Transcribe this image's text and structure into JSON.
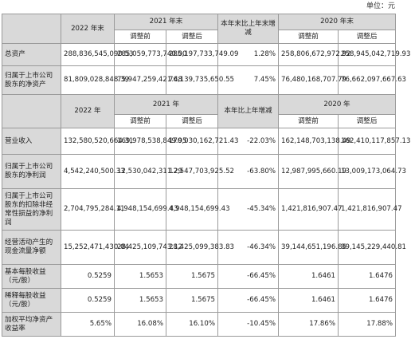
{
  "unit_label": "单位：元",
  "table1": {
    "header": {
      "col_year_2022": "2022 年末",
      "col_year_2021": "2021 年末",
      "col_change": "本年末比上年末增减",
      "col_year_2020": "2020 年末",
      "sub_before": "调整前",
      "sub_after": "调整后"
    },
    "rows": [
      {
        "label": "总资产",
        "v2022": "288,836,545,090.53",
        "v2021_before": "285,059,773,740.00",
        "v2021_after": "285,197,733,749.09",
        "change": "1.28%",
        "v2020_before": "258,806,672,972.92",
        "v2020_after": "258,945,042,719.93"
      },
      {
        "label": "归属于上市公司股东的净资产",
        "v2022": "81,809,028,848.39",
        "v2021_before": "75,947,259,421.48",
        "v2021_after": "76,139,735,650.55",
        "change": "7.45%",
        "v2020_before": "76,480,168,707.79",
        "v2020_after": "76,662,097,667.63"
      }
    ]
  },
  "table2": {
    "header": {
      "col_year_2022": "2022 年",
      "col_year_2021": "2021 年",
      "col_change": "本年比上年增减",
      "col_year_2020": "2020 年",
      "sub_before": "调整前",
      "sub_after": "调整后"
    },
    "rows": [
      {
        "label": "营业收入",
        "v2022": "132,580,520,664.31",
        "v2021_before": "169,978,538,849.95",
        "v2021_after": "170,030,162,721.43",
        "change": "-22.03%",
        "v2020_before": "162,148,703,138.49",
        "v2020_after": "162,410,117,857.13"
      },
      {
        "label": "归属于上市公司股东的净利润",
        "v2022": "4,542,240,500.33",
        "v2021_before": "12,530,042,311.29",
        "v2021_after": "12,547,703,925.52",
        "change": "-63.80%",
        "v2020_before": "12,987,995,660.19",
        "v2020_after": "13,009,173,064.73"
      },
      {
        "label": "归属于上市公司股东的扣除非经常性损益的净利润",
        "v2022": "2,704,795,284.11",
        "v2021_before": "4,948,154,699.43",
        "v2021_after": "4,948,154,699.43",
        "change": "-45.34%",
        "v2020_before": "1,421,816,907.47",
        "v2020_after": "1,421,816,907.47"
      },
      {
        "label": "经营活动产生的现金流量净额",
        "v2022": "15,252,471,430.04",
        "v2021_before": "28,425,109,743.12",
        "v2021_after": "28,425,099,383.83",
        "change": "-46.34%",
        "v2020_before": "39,144,651,196.86",
        "v2020_after": "39,145,229,440.81"
      },
      {
        "label": "基本每股收益（元/股）",
        "v2022": "0.5259",
        "v2021_before": "1.5653",
        "v2021_after": "1.5675",
        "change": "-66.45%",
        "v2020_before": "1.6461",
        "v2020_after": "1.6476"
      },
      {
        "label": "稀释每股收益（元/股）",
        "v2022": "0.5259",
        "v2021_before": "1.5653",
        "v2021_after": "1.5675",
        "change": "-66.45%",
        "v2020_before": "1.6461",
        "v2020_after": "1.6476"
      },
      {
        "label": "加权平均净资产收益率",
        "v2022": "5.65%",
        "v2021_before": "16.08%",
        "v2021_after": "16.10%",
        "change": "-10.45%",
        "v2020_before": "17.86%",
        "v2020_after": "17.88%"
      }
    ]
  }
}
